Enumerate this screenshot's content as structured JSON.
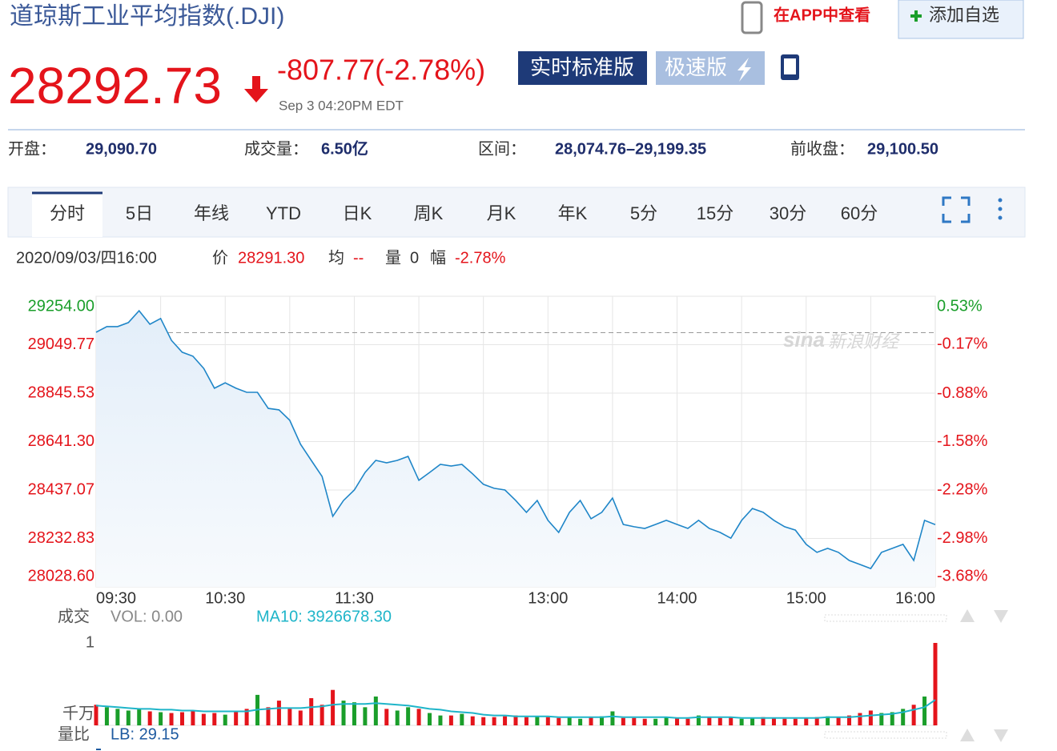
{
  "header": {
    "title": "道琼斯工业平均指数(.DJI)",
    "app_link": "在APP中查看",
    "add_button": "添加自选",
    "price": "28292.73",
    "change": "-807.77(-2.78%)",
    "time": "Sep 3 04:20PM EDT",
    "buttons": [
      "实时标准版",
      "极速版"
    ]
  },
  "stats": [
    {
      "label": "开盘：",
      "value": "29,090.70"
    },
    {
      "label": "成交量：",
      "value": "6.50亿"
    },
    {
      "label": "区间：",
      "value": "28,074.76–29,199.35"
    },
    {
      "label": "前收盘：",
      "value": "29,100.50"
    }
  ],
  "tabs": [
    "分时",
    "5日",
    "年线",
    "YTD",
    "日K",
    "周K",
    "月K",
    "年K",
    "5分",
    "15分",
    "30分",
    "60分"
  ],
  "info": {
    "date": "2020/09/03/四16:00",
    "items": [
      {
        "label": "价",
        "value": "28291.30"
      },
      {
        "label": "均",
        "value": "--"
      },
      {
        "label": "量",
        "value": "0"
      },
      {
        "label": "幅",
        "value": "-2.78%"
      }
    ]
  },
  "chart_data": [
    {
      "type": "line",
      "watermark": [
        "sina",
        "新浪财经"
      ],
      "categories": [
        "09:30",
        null,
        null,
        null,
        null,
        null,
        null,
        null,
        null,
        null,
        null,
        null,
        "10:30",
        null,
        null,
        null,
        null,
        null,
        null,
        null,
        null,
        null,
        null,
        null,
        "11:30",
        null,
        null,
        null,
        null,
        null,
        null,
        null,
        null,
        null,
        null,
        null,
        null,
        null,
        null,
        null,
        null,
        null,
        "13:00",
        null,
        null,
        null,
        null,
        null,
        null,
        null,
        null,
        null,
        null,
        null,
        "14:00",
        null,
        null,
        null,
        null,
        null,
        null,
        null,
        null,
        null,
        null,
        null,
        "15:00",
        null,
        null,
        null,
        null,
        null,
        null,
        null,
        null,
        null,
        null,
        null,
        "16:00"
      ],
      "series": [
        {
          "color": "#1f86c8",
          "values": [
            29102,
            29126,
            29126,
            29143,
            29193,
            29136,
            29160,
            29068,
            29018,
            29001,
            28950,
            28866,
            28889,
            28866,
            28849,
            28849,
            28781,
            28775,
            28731,
            28630,
            28562,
            28494,
            28326,
            28393,
            28437,
            28511,
            28562,
            28552,
            28562,
            28579,
            28478,
            28511,
            28545,
            28538,
            28545,
            28505,
            28461,
            28444,
            28437,
            28393,
            28343,
            28393,
            28309,
            28258,
            28343,
            28393,
            28316,
            28343,
            28403,
            28292,
            28282,
            28275,
            28292,
            28309,
            28292,
            28275,
            28309,
            28275,
            28258,
            28234,
            28309,
            28359,
            28343,
            28309,
            28282,
            28268,
            28208,
            28174,
            28191,
            28174,
            28140,
            28123,
            28106,
            28174,
            28191,
            28208,
            28140,
            28309,
            28291.3
          ]
        }
      ],
      "prev_close": 29100.5,
      "ylim": [
        28028.6,
        29254
      ],
      "yticks": [
        {
          "value": 29254,
          "label": "29254.00"
        },
        {
          "value": 29049.77,
          "label": "29049.77"
        },
        {
          "value": 28845.53,
          "label": "28845.53"
        },
        {
          "value": 28641.3,
          "label": "28641.30"
        },
        {
          "value": 28437.07,
          "label": "28437.07"
        },
        {
          "value": 28232.83,
          "label": "28232.83"
        },
        {
          "value": 28028.6,
          "label": "28028.60"
        }
      ],
      "y2lim": [
        -3.68,
        0.53
      ],
      "y2ticks": [
        {
          "value": 0.53,
          "label": "0.53%"
        },
        {
          "value": -0.17,
          "label": "-0.17%"
        },
        {
          "value": -0.88,
          "label": "-0.88%"
        },
        {
          "value": -1.58,
          "label": "-1.58%"
        },
        {
          "value": -2.28,
          "label": "-2.28%"
        },
        {
          "value": -2.98,
          "label": "-2.98%"
        },
        {
          "value": -3.68,
          "label": "-3.68%"
        }
      ],
      "up_color": "#1a9e2a",
      "down_color": "#e4141b",
      "grid": true
    },
    {
      "type": "bar",
      "title": "成交",
      "vol_label": "VOL: 0.00",
      "unit": "千万",
      "ratio_title": "量比",
      "ratio_label": "LB: 29.15",
      "ylim": [
        0,
        1
      ],
      "yticks": [
        1
      ],
      "up_color": "#1a9e2a",
      "down_color": "#e4141b",
      "values": [
        0.25,
        0.22,
        0.2,
        0.18,
        0.2,
        0.17,
        0.16,
        0.15,
        0.16,
        0.18,
        0.14,
        0.15,
        0.13,
        0.17,
        0.2,
        0.37,
        0.22,
        0.3,
        0.2,
        0.18,
        0.33,
        0.25,
        0.43,
        0.3,
        0.28,
        0.22,
        0.35,
        0.2,
        0.18,
        0.22,
        0.2,
        0.15,
        0.12,
        0.12,
        0.14,
        0.11,
        0.1,
        0.1,
        0.11,
        0.12,
        0.1,
        0.11,
        0.1,
        0.09,
        0.1,
        0.08,
        0.1,
        0.11,
        0.17,
        0.09,
        0.09,
        0.08,
        0.08,
        0.1,
        0.09,
        0.08,
        0.12,
        0.1,
        0.09,
        0.1,
        0.08,
        0.09,
        0.1,
        0.09,
        0.08,
        0.08,
        0.09,
        0.1,
        0.11,
        0.1,
        0.12,
        0.15,
        0.18,
        0.15,
        0.16,
        0.2,
        0.25,
        0.35,
        1.0
      ],
      "ma": {
        "label": "MA10: 3926678.30",
        "color": "#1fb5c9",
        "values": [
          0.24,
          0.23,
          0.22,
          0.21,
          0.2,
          0.2,
          0.19,
          0.19,
          0.18,
          0.18,
          0.17,
          0.17,
          0.17,
          0.17,
          0.17,
          0.19,
          0.2,
          0.21,
          0.21,
          0.21,
          0.22,
          0.23,
          0.25,
          0.26,
          0.26,
          0.26,
          0.27,
          0.26,
          0.25,
          0.24,
          0.22,
          0.2,
          0.19,
          0.17,
          0.16,
          0.15,
          0.13,
          0.12,
          0.12,
          0.11,
          0.11,
          0.11,
          0.11,
          0.1,
          0.1,
          0.1,
          0.1,
          0.1,
          0.11,
          0.1,
          0.1,
          0.1,
          0.1,
          0.1,
          0.09,
          0.09,
          0.1,
          0.1,
          0.1,
          0.1,
          0.09,
          0.09,
          0.09,
          0.09,
          0.09,
          0.09,
          0.09,
          0.09,
          0.1,
          0.1,
          0.1,
          0.11,
          0.12,
          0.13,
          0.14,
          0.16,
          0.19,
          0.22,
          0.31
        ]
      }
    }
  ]
}
